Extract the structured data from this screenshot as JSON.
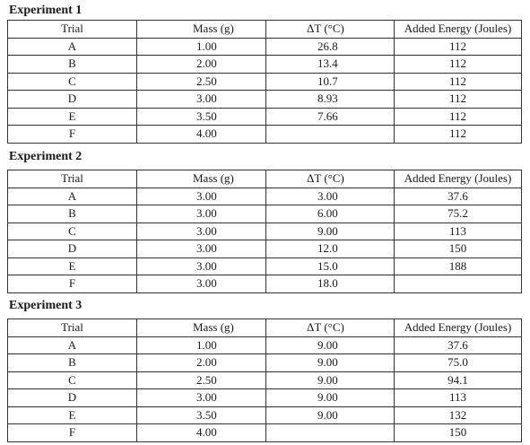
{
  "headers": [
    "Trial",
    "Mass (g)",
    "ΔT (°C)",
    "Added Energy (Joules)"
  ],
  "experiments": [
    {
      "title": "Experiment 1",
      "rows": [
        [
          "A",
          "1.00",
          "26.8",
          "112"
        ],
        [
          "B",
          "2.00",
          "13.4",
          "112"
        ],
        [
          "C",
          "2.50",
          "10.7",
          "112"
        ],
        [
          "D",
          "3.00",
          "8.93",
          "112"
        ],
        [
          "E",
          "3.50",
          "7.66",
          "112"
        ],
        [
          "F",
          "4.00",
          "",
          "112"
        ]
      ]
    },
    {
      "title": "Experiment 2",
      "rows": [
        [
          "A",
          "3.00",
          "3.00",
          "37.6"
        ],
        [
          "B",
          "3.00",
          "6.00",
          "75.2"
        ],
        [
          "C",
          "3.00",
          "9.00",
          "113"
        ],
        [
          "D",
          "3.00",
          "12.0",
          "150"
        ],
        [
          "E",
          "3.00",
          "15.0",
          "188"
        ],
        [
          "F",
          "3.00",
          "18.0",
          ""
        ]
      ]
    },
    {
      "title": "Experiment 3",
      "rows": [
        [
          "A",
          "1.00",
          "9.00",
          "37.6"
        ],
        [
          "B",
          "2.00",
          "9.00",
          "75.0"
        ],
        [
          "C",
          "2.50",
          "9.00",
          "94.1"
        ],
        [
          "D",
          "3.00",
          "9.00",
          "113"
        ],
        [
          "E",
          "3.50",
          "9.00",
          "132"
        ],
        [
          "F",
          "4.00",
          "",
          "150"
        ]
      ]
    }
  ]
}
